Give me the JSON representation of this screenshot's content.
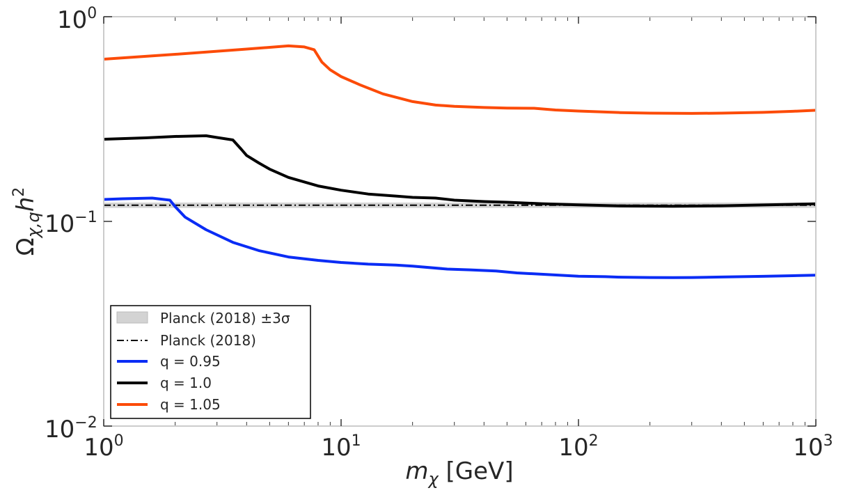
{
  "chart_data": {
    "type": "line",
    "xscale": "log",
    "yscale": "log",
    "xlim": [
      1,
      1000
    ],
    "ylim": [
      0.01,
      1
    ],
    "x_ticks": [
      {
        "value": 1,
        "base": "10",
        "exp": "0"
      },
      {
        "value": 10,
        "base": "10",
        "exp": "1"
      },
      {
        "value": 100,
        "base": "10",
        "exp": "2"
      },
      {
        "value": 1000,
        "base": "10",
        "exp": "3"
      }
    ],
    "y_ticks": [
      {
        "value": 1,
        "base": "10",
        "exp": "0"
      },
      {
        "value": 0.1,
        "base": "10",
        "exp": "−1"
      },
      {
        "value": 0.01,
        "base": "10",
        "exp": "−2"
      }
    ],
    "xlabel": {
      "symbol": "m",
      "sub": "χ",
      "unit": " [GeV]"
    },
    "ylabel": {
      "symbol": "Ω",
      "sub": "χ,q",
      "body": "h",
      "sup": "2"
    },
    "band": {
      "name": "Planck (2018) ±3σ",
      "center": 0.12,
      "low": 0.1164,
      "high": 0.1236,
      "color": "#d3d3d3"
    },
    "reference_line": {
      "name": "Planck (2018)",
      "value": 0.12,
      "color": "#000000",
      "style": "dashdot"
    },
    "series": [
      {
        "name": "q = 0.95",
        "color": "#0a2cf5",
        "x": [
          1,
          1.2,
          1.6,
          1.9,
          2.0,
          2.2,
          2.7,
          3.5,
          4.5,
          6,
          8,
          10,
          13,
          17,
          20,
          28,
          35,
          45,
          55,
          70,
          100,
          130,
          150,
          200,
          250,
          300,
          400,
          600,
          800,
          1000
        ],
        "y": [
          0.128,
          0.129,
          0.13,
          0.127,
          0.118,
          0.105,
          0.091,
          0.079,
          0.072,
          0.067,
          0.0645,
          0.063,
          0.0618,
          0.0612,
          0.0605,
          0.0585,
          0.058,
          0.0572,
          0.056,
          0.0552,
          0.054,
          0.0537,
          0.0534,
          0.0532,
          0.0531,
          0.0532,
          0.0535,
          0.0539,
          0.0543,
          0.0546
        ]
      },
      {
        "name": "q = 1.0",
        "color": "#000000",
        "x": [
          1,
          1.5,
          2.0,
          2.7,
          3.0,
          3.5,
          3.8,
          4.0,
          4.5,
          5,
          6,
          8,
          10,
          13,
          17,
          20,
          25,
          30,
          40,
          50,
          70,
          100,
          150,
          250,
          400,
          600,
          800,
          1000
        ],
        "y": [
          0.252,
          0.256,
          0.26,
          0.262,
          0.257,
          0.25,
          0.225,
          0.21,
          0.193,
          0.18,
          0.164,
          0.149,
          0.142,
          0.136,
          0.133,
          0.131,
          0.13,
          0.127,
          0.125,
          0.124,
          0.122,
          0.1205,
          0.119,
          0.1185,
          0.1192,
          0.1203,
          0.1212,
          0.1218
        ]
      },
      {
        "name": "q = 1.05",
        "color": "#fc4b08",
        "x": [
          1,
          2,
          4,
          6,
          7,
          7.7,
          8.3,
          9,
          10,
          12,
          15,
          20,
          25,
          30,
          40,
          50,
          65,
          80,
          100,
          150,
          200,
          300,
          400,
          600,
          800,
          1000
        ],
        "y": [
          0.62,
          0.655,
          0.695,
          0.72,
          0.712,
          0.69,
          0.6,
          0.55,
          0.51,
          0.465,
          0.42,
          0.385,
          0.37,
          0.365,
          0.36,
          0.358,
          0.357,
          0.35,
          0.346,
          0.34,
          0.338,
          0.337,
          0.338,
          0.341,
          0.345,
          0.349
        ]
      }
    ],
    "legend": {
      "location": "lower-left"
    }
  }
}
